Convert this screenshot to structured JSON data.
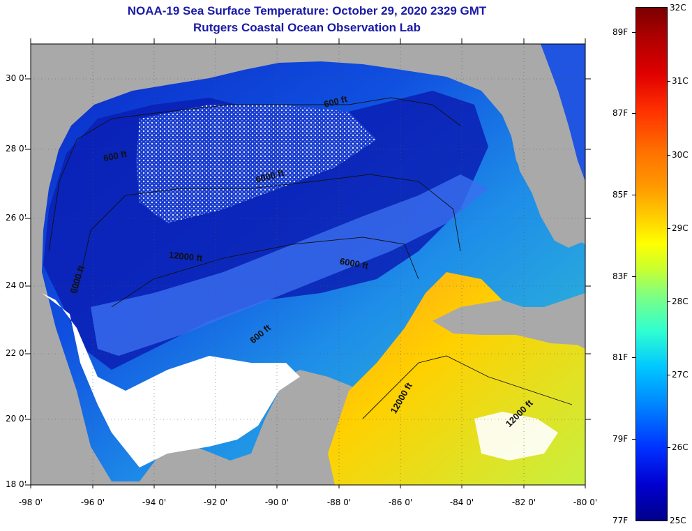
{
  "title": {
    "line1": "NOAA-19 Sea Surface Temperature:  October 29, 2020 2329 GMT",
    "line2": "Rutgers Coastal Ocean Observation Lab"
  },
  "map": {
    "lon_range": [
      -98,
      -80
    ],
    "lat_range": [
      18,
      31
    ],
    "lat_labels": [
      "30 0'",
      "28 0'",
      "26 0'",
      "24 0'",
      "22 0'",
      "20 0'",
      "18 0'"
    ],
    "lon_labels": [
      "-98 0'",
      "-96 0'",
      "-94 0'",
      "-92 0'",
      "-90 0'",
      "-88 0'",
      "-86 0'",
      "-84 0'",
      "-82 0'",
      "-80 0'"
    ],
    "contour_labels": [
      "600 ft",
      "600 ft",
      "6000 ft",
      "12000 ft",
      "6000 ft",
      "6000 ft",
      "600 ft",
      "12000 ft",
      "12000 ft"
    ],
    "colors": {
      "land": "#a9a9a9",
      "cloud": "#ffffff",
      "warm_sea": "#ffd000",
      "cool_sea": "#0a1fb4"
    }
  },
  "colorbar": {
    "celsius_labels": [
      "32C",
      "31C",
      "30C",
      "29C",
      "28C",
      "27C",
      "26C",
      "25C"
    ],
    "fahrenheit_labels": [
      "89F",
      "87F",
      "85F",
      "83F",
      "81F",
      "79F",
      "77F"
    ]
  }
}
